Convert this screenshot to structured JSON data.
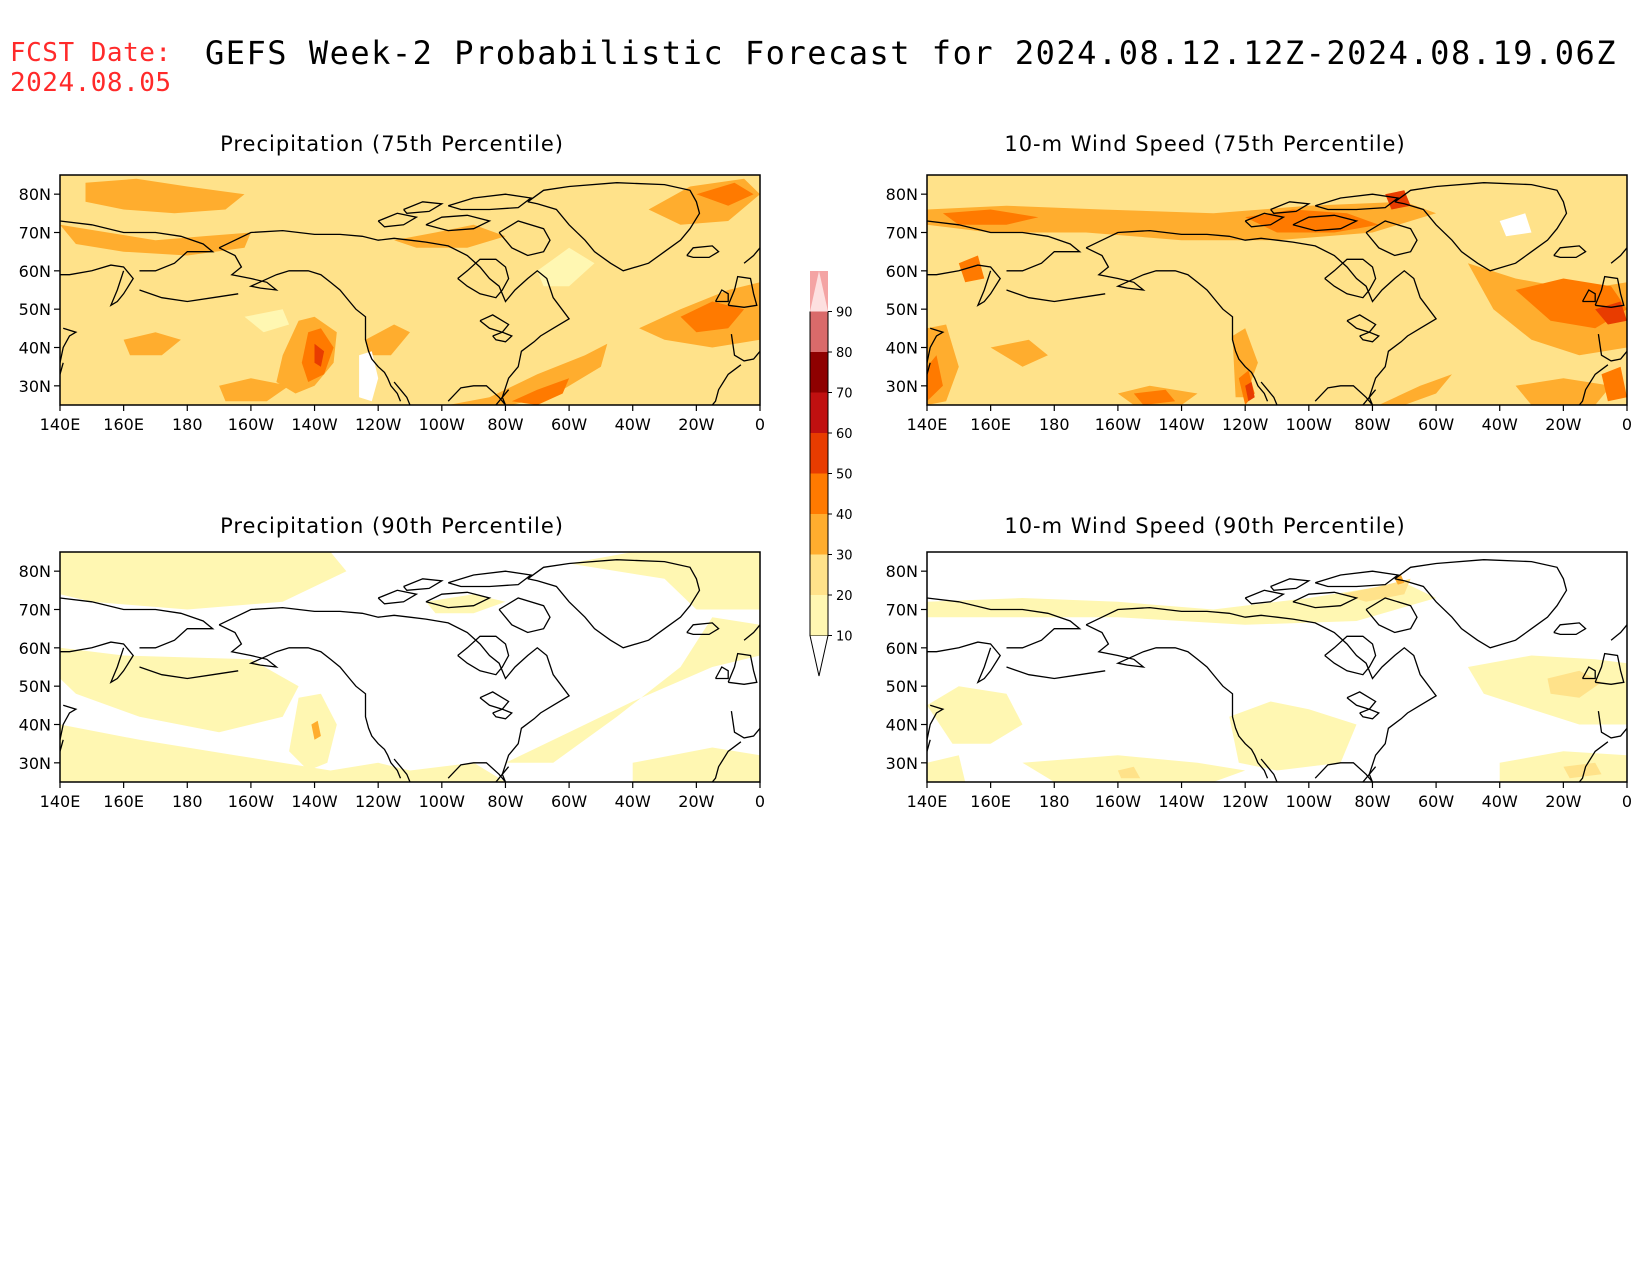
{
  "header": {
    "fcst_label": "FCST Date:",
    "fcst_date": "2024.08.05",
    "title": "GEFS Week-2 Probabilistic Forecast for 2024.08.12.12Z-2024.08.19.06Z"
  },
  "panels": [
    {
      "title": "Precipitation (75th Percentile)"
    },
    {
      "title": "10-m Wind Speed (75th Percentile)"
    },
    {
      "title": "Precipitation (90th Percentile)"
    },
    {
      "title": "10-m Wind Speed (90th Percentile)"
    }
  ],
  "axes": {
    "lon_labels": [
      "140E",
      "160E",
      "180",
      "160W",
      "140W",
      "120W",
      "100W",
      "80W",
      "60W",
      "40W",
      "20W",
      "0"
    ],
    "lat_labels": [
      "80N",
      "70N",
      "60N",
      "50N",
      "40N",
      "30N"
    ]
  },
  "colorbar": {
    "levels": [
      "10",
      "20",
      "30",
      "40",
      "50",
      "60",
      "70",
      "80",
      "90"
    ],
    "colors": [
      "#fff7b2",
      "#ffe28a",
      "#ffad2e",
      "#ff7a00",
      "#e83c00",
      "#c01010",
      "#8e0000",
      "#d96a6a",
      "#f4a4a4",
      "#fde0e0"
    ]
  }
}
